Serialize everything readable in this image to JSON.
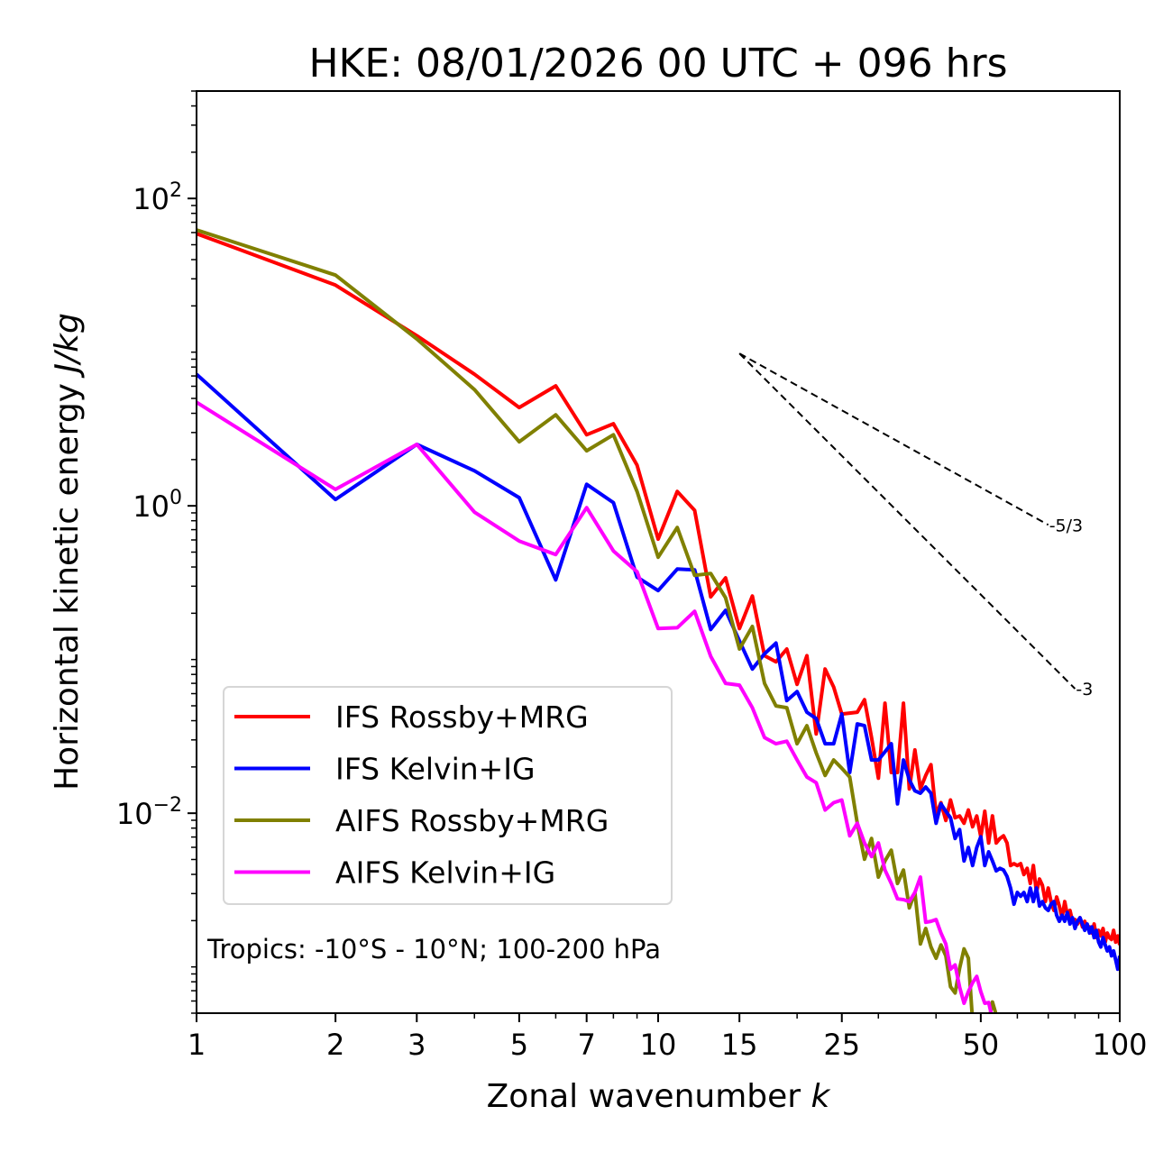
{
  "chart_data": {
    "type": "line",
    "title": "HKE: 08/01/2026 00 UTC + 096 hrs",
    "xlabel": "Zonal wavenumber",
    "xlabel_var": "k",
    "ylabel": "Horizontal kinetic energy",
    "ylabel_unit": "J/kg",
    "xscale": "log",
    "yscale": "log",
    "xlim": [
      1,
      100
    ],
    "ylim": [
      0.0005,
      500
    ],
    "grid": false,
    "x_ticks": [
      1,
      2,
      3,
      5,
      7,
      10,
      15,
      25,
      50,
      100
    ],
    "x_tick_labels": [
      "1",
      "2",
      "3",
      "5",
      "7",
      "10",
      "15",
      "25",
      "50",
      "100"
    ],
    "y_ticks": [
      0.01,
      1,
      100
    ],
    "y_tick_labels": [
      {
        "base": "10",
        "exp": "−2"
      },
      {
        "base": "10",
        "exp": "0"
      },
      {
        "base": "10",
        "exp": "2"
      }
    ],
    "annotation": "Tropics: -10°S - 10°N; 100-200 hPa",
    "legend": {
      "location": "lower-left"
    },
    "reference_lines": [
      {
        "slope_label": "-5/3",
        "slope": -1.6667,
        "k_start": 15,
        "k_end": 70,
        "e_start": 9.8,
        "style": "dashed",
        "color": "#000000"
      },
      {
        "slope_label": "-3",
        "slope": -3,
        "k_start": 15,
        "k_end": 80,
        "e_start": 9.8,
        "style": "dashed",
        "color": "#000000"
      }
    ],
    "series": [
      {
        "name": "IFS Rossby+MRG",
        "color": "#ff0000",
        "k_start": 1,
        "values": [
          59.0,
          27.3,
          12.8,
          7.18,
          4.36,
          6.03,
          2.9,
          3.42,
          1.84,
          0.607,
          1.24,
          0.935,
          0.256,
          0.34,
          0.159,
          0.259,
          0.106,
          0.0966,
          0.117,
          0.069,
          0.106,
          0.0328,
          0.0867,
          0.0662,
          0.0442,
          0.0448,
          0.0454,
          0.0548,
          0.0311,
          0.0169,
          0.052,
          0.0184,
          0.0184,
          0.052,
          0.0144,
          0.0258,
          0.0144,
          0.0176,
          0.0207,
          0.00986,
          0.0117,
          0.00897,
          0.0122,
          0.00935,
          0.0096,
          0.00861,
          0.0105,
          0.00816,
          0.0096,
          0.00703,
          0.0103,
          0.0064,
          0.0096,
          0.0064,
          0.00685,
          0.00713,
          0.0064,
          0.00457,
          0.0047,
          0.00457,
          0.0047,
          0.00399,
          0.00438,
          0.00349,
          0.00457,
          0.00305,
          0.00373,
          0.0034,
          0.00266,
          0.00326,
          0.00266,
          0.00233,
          0.00285,
          0.00249,
          0.00209,
          0.00266,
          0.00217,
          0.00233,
          0.00198,
          0.00203,
          0.0019,
          0.00209,
          0.00182,
          0.00198,
          0.00178,
          0.00182,
          0.00166,
          0.0019,
          0.00155,
          0.00173,
          0.00159,
          0.00178,
          0.00145,
          0.00166,
          0.00155,
          0.00151,
          0.00173,
          0.00145,
          0.00159,
          0.00139
        ]
      },
      {
        "name": "IFS Kelvin+IG",
        "color": "#0000ff",
        "k_start": 1,
        "values": [
          7.18,
          1.1,
          2.51,
          1.69,
          1.13,
          0.33,
          1.38,
          1.05,
          0.344,
          0.281,
          0.388,
          0.383,
          0.157,
          0.209,
          0.132,
          0.0867,
          0.109,
          0.128,
          0.0541,
          0.0619,
          0.0454,
          0.0413,
          0.0283,
          0.0283,
          0.0442,
          0.0184,
          0.0381,
          0.0371,
          0.0222,
          0.0222,
          0.0251,
          0.0283,
          0.0115,
          0.0222,
          0.0165,
          0.014,
          0.0135,
          0.0148,
          0.0135,
          0.00861,
          0.0115,
          0.0103,
          0.00935,
          0.00685,
          0.00783,
          0.00489,
          0.00598,
          0.00457,
          0.00598,
          0.00703,
          0.00457,
          0.0056,
          0.00489,
          0.00422,
          0.00438,
          0.00427,
          0.00388,
          0.00326,
          0.00256,
          0.00305,
          0.00288,
          0.00305,
          0.00266,
          0.00326,
          0.00266,
          0.00326,
          0.00249,
          0.00266,
          0.00242,
          0.00233,
          0.00256,
          0.00266,
          0.00217,
          0.00198,
          0.00217,
          0.00198,
          0.00226,
          0.0019,
          0.00209,
          0.00178,
          0.00198,
          0.00209,
          0.0019,
          0.00173,
          0.0019,
          0.00166,
          0.00182,
          0.00155,
          0.00173,
          0.00145,
          0.00135,
          0.00155,
          0.00139,
          0.00127,
          0.00135,
          0.00118,
          0.00127,
          0.00111,
          0.000966,
          0.00118
        ]
      },
      {
        "name": "AIFS Rossby+MRG",
        "color": "#808000",
        "k_start": 1,
        "values": [
          62.4,
          31.7,
          12.2,
          5.71,
          2.61,
          3.91,
          2.28,
          2.9,
          1.24,
          0.463,
          0.723,
          0.353,
          0.363,
          0.252,
          0.117,
          0.164,
          0.07,
          0.0499,
          0.0486,
          0.0283,
          0.0371,
          0.0247,
          0.0176,
          0.0222,
          0.0196,
          0.0172,
          0.00861,
          0.00502,
          0.00685,
          0.00384,
          0.00489,
          0.00575,
          0.00349,
          0.00427,
          0.00242,
          0.00305,
          0.00141,
          0.00178,
          0.00135,
          0.00114,
          0.00139,
          0.00118,
          0.000743,
          0.000677,
          0.00098,
          0.00131,
          0.00114,
          0.00044,
          0.00038,
          0.00041,
          0.00042,
          0.00044,
          0.000591,
          0.000487
        ]
      },
      {
        "name": "AIFS Kelvin+IG",
        "color": "#ff00ff",
        "k_start": 1,
        "values": [
          4.72,
          1.28,
          2.51,
          0.91,
          0.59,
          0.482,
          0.973,
          0.509,
          0.373,
          0.159,
          0.161,
          0.206,
          0.105,
          0.07,
          0.0681,
          0.0486,
          0.0311,
          0.0283,
          0.0294,
          0.0222,
          0.0172,
          0.0158,
          0.0105,
          0.0117,
          0.0122,
          0.00713,
          0.00861,
          0.0064,
          0.00523,
          0.0064,
          0.00427,
          0.00349,
          0.00277,
          0.00274,
          0.00266,
          0.00305,
          0.00384,
          0.00195,
          0.00198,
          0.00203,
          0.00166,
          0.00141,
          0.000966,
          0.00103,
          0.000738,
          0.00058,
          0.00069,
          0.000789,
          0.000867,
          0.00069,
          0.00058,
          0.000586,
          0.00046
        ]
      }
    ]
  }
}
